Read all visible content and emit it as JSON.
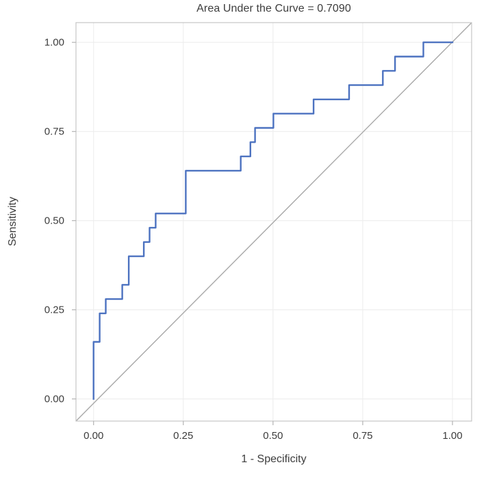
{
  "title": "Area Under the Curve = 0.7090",
  "colors": {
    "roc_line": "#4c72c0",
    "reference_line": "#a8a8a8",
    "frame": "#c6c6c6",
    "grid": "#ececec",
    "tick": "#b2b2b2",
    "text": "#3c3c3c",
    "background": "#ffffff"
  },
  "chart_data": {
    "type": "line",
    "subtype": "roc-step-curve",
    "title": "Area Under the Curve = 0.7090",
    "auc": 0.709,
    "xlabel": "1 - Specificity",
    "ylabel": "Sensitivity",
    "xlim": [
      -0.05,
      1.05
    ],
    "ylim": [
      -0.06,
      1.06
    ],
    "grid": true,
    "legend": "none",
    "x_ticks": [
      {
        "value": 0.0,
        "label": "0.00"
      },
      {
        "value": 0.25,
        "label": "0.25"
      },
      {
        "value": 0.5,
        "label": "0.50"
      },
      {
        "value": 0.75,
        "label": "0.75"
      },
      {
        "value": 1.0,
        "label": "1.00"
      }
    ],
    "y_ticks": [
      {
        "value": 0.0,
        "label": "0.00"
      },
      {
        "value": 0.25,
        "label": "0.25"
      },
      {
        "value": 0.5,
        "label": "0.50"
      },
      {
        "value": 0.75,
        "label": "0.75"
      },
      {
        "value": 1.0,
        "label": "1.00"
      }
    ],
    "series": [
      {
        "name": "ROC curve",
        "style": "step",
        "color": "#4c72c0",
        "points": [
          [
            0.0,
            0.0
          ],
          [
            0.0,
            0.16
          ],
          [
            0.017,
            0.16
          ],
          [
            0.017,
            0.24
          ],
          [
            0.034,
            0.24
          ],
          [
            0.034,
            0.28
          ],
          [
            0.08,
            0.28
          ],
          [
            0.08,
            0.32
          ],
          [
            0.098,
            0.32
          ],
          [
            0.098,
            0.4
          ],
          [
            0.14,
            0.4
          ],
          [
            0.14,
            0.44
          ],
          [
            0.156,
            0.44
          ],
          [
            0.156,
            0.48
          ],
          [
            0.173,
            0.48
          ],
          [
            0.173,
            0.52
          ],
          [
            0.257,
            0.52
          ],
          [
            0.257,
            0.64
          ],
          [
            0.41,
            0.64
          ],
          [
            0.41,
            0.68
          ],
          [
            0.437,
            0.68
          ],
          [
            0.437,
            0.72
          ],
          [
            0.45,
            0.72
          ],
          [
            0.45,
            0.76
          ],
          [
            0.501,
            0.76
          ],
          [
            0.501,
            0.8
          ],
          [
            0.613,
            0.8
          ],
          [
            0.613,
            0.84
          ],
          [
            0.712,
            0.84
          ],
          [
            0.712,
            0.88
          ],
          [
            0.806,
            0.88
          ],
          [
            0.806,
            0.92
          ],
          [
            0.84,
            0.92
          ],
          [
            0.84,
            0.96
          ],
          [
            0.919,
            0.96
          ],
          [
            0.919,
            1.0
          ],
          [
            1.0,
            1.0
          ]
        ]
      },
      {
        "name": "Reference diagonal",
        "style": "straight",
        "color": "#a8a8a8",
        "points": [
          [
            0,
            0
          ],
          [
            1,
            1
          ]
        ],
        "spans_full_frame": true
      }
    ]
  }
}
